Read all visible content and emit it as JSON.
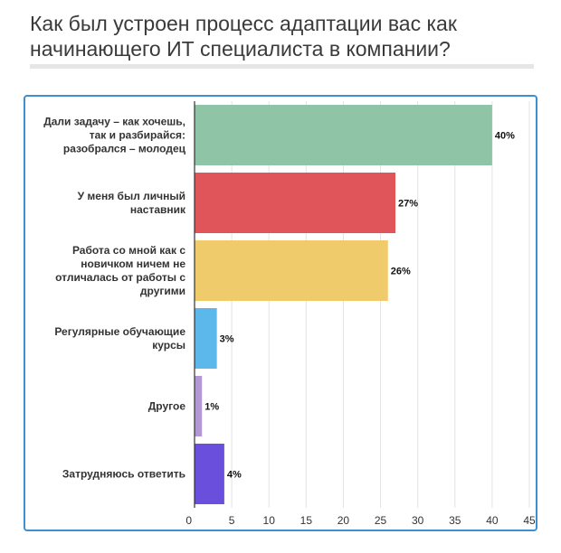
{
  "title": "Как был устроен процесс адаптации вас как начинающего ИТ специалиста в компании?",
  "chart_data": {
    "type": "bar",
    "orientation": "horizontal",
    "title": "Как был устроен процесс адаптации вас как начинающего ИТ специалиста в компании?",
    "categories": [
      [
        "Дали задачу – как хочешь,",
        "так и разбирайся:",
        "разобрался – молодец"
      ],
      [
        "У меня был личный",
        "наставник"
      ],
      [
        "Работа со мной как с",
        "новичком ничем не",
        "отличалась от работы с",
        "другими"
      ],
      [
        "Регулярные обучающие",
        "курсы"
      ],
      [
        "Другое"
      ],
      [
        "Затрудняюсь ответить"
      ]
    ],
    "values": [
      40,
      27,
      26,
      3,
      1,
      4
    ],
    "value_labels": [
      "40%",
      "27%",
      "26%",
      "3%",
      "1%",
      "4%"
    ],
    "colors": [
      "#8fc4a6",
      "#e0555a",
      "#f0cb6b",
      "#5cb7ea",
      "#b398d6",
      "#6a4fdc"
    ],
    "xlim": [
      0,
      45
    ],
    "xticks": [
      0,
      5,
      10,
      15,
      20,
      25,
      30,
      35,
      40,
      45
    ],
    "grid": true,
    "legend": "none",
    "accent_color": "#3e8fd0"
  }
}
